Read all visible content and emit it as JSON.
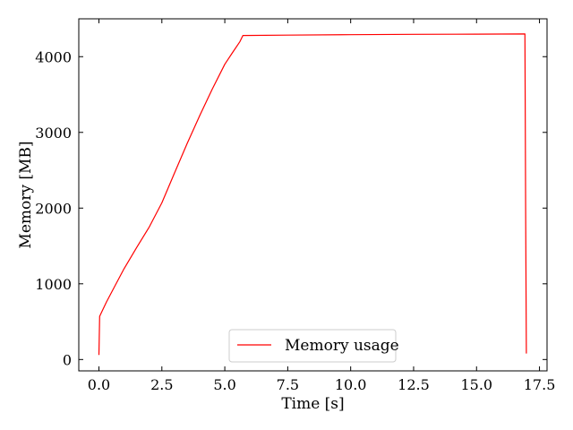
{
  "chart_data": {
    "type": "line",
    "xlabel": "Time [s]",
    "ylabel": "Memory [MB]",
    "xlim": [
      -0.8,
      17.8
    ],
    "ylim": [
      -150,
      4500
    ],
    "xticks": [
      0.0,
      2.5,
      5.0,
      7.5,
      10.0,
      12.5,
      15.0,
      17.5
    ],
    "xtick_labels": [
      "0.0",
      "2.5",
      "5.0",
      "7.5",
      "10.0",
      "12.5",
      "15.0",
      "17.5"
    ],
    "yticks": [
      0,
      1000,
      2000,
      3000,
      4000
    ],
    "ytick_labels": [
      "0",
      "1000",
      "2000",
      "3000",
      "4000"
    ],
    "tick_direction": "in",
    "ticks_on_all_sides": true,
    "grid": false,
    "legend": {
      "position": "lower-center",
      "entries": [
        "Memory usage"
      ]
    },
    "series": [
      {
        "name": "Memory usage",
        "color": "#ff0000",
        "x": [
          0.0,
          0.03,
          0.1,
          0.3,
          0.6,
          1.0,
          1.5,
          2.0,
          2.5,
          3.0,
          3.5,
          4.0,
          4.5,
          5.0,
          5.3,
          5.6,
          5.72,
          7.5,
          10.0,
          12.5,
          15.0,
          16.92,
          16.95,
          16.98
        ],
        "y": [
          60,
          570,
          620,
          760,
          950,
          1200,
          1480,
          1750,
          2070,
          2460,
          2850,
          3220,
          3570,
          3900,
          4050,
          4200,
          4280,
          4285,
          4290,
          4295,
          4298,
          4300,
          2000,
          80
        ]
      }
    ]
  }
}
